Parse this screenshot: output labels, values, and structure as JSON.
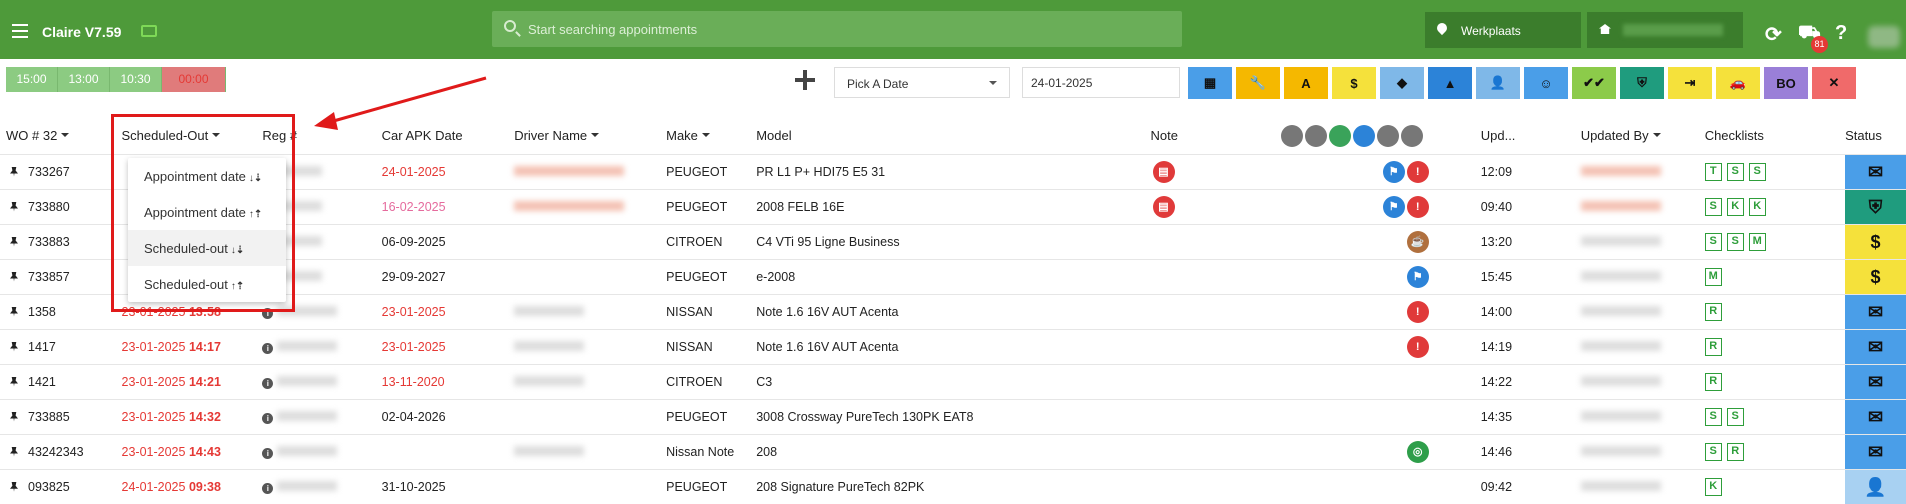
{
  "header": {
    "title": "Claire V7.59",
    "search_placeholder": "Start searching appointments",
    "location": "Werkplaats",
    "notifications": "81",
    "help": "?"
  },
  "slots": [
    "15:00",
    "13:00",
    "10:30",
    "00:00"
  ],
  "toolbar": {
    "date_picker": "Pick A Date",
    "date_value": "24-01-2025",
    "buttons": [
      {
        "name": "calendar-icon",
        "label": "▦",
        "color": "#4a9ee8"
      },
      {
        "name": "wrench-icon",
        "label": "🔧",
        "color": "#f5b800"
      },
      {
        "name": "a-icon",
        "label": "A",
        "color": "#f5b800"
      },
      {
        "name": "dollar-icon",
        "label": "$",
        "color": "#f5e13b"
      },
      {
        "name": "tag-icon",
        "label": "◆",
        "color": "#7fb8e8"
      },
      {
        "name": "warning-icon",
        "label": "▲",
        "color": "#2c83d8"
      },
      {
        "name": "user-check-icon",
        "label": "👤",
        "color": "#7fb8e8"
      },
      {
        "name": "face-icon",
        "label": "☺",
        "color": "#4a9ee8"
      },
      {
        "name": "double-check-icon",
        "label": "✔✔",
        "color": "#8ccb4a"
      },
      {
        "name": "shield-icon",
        "label": "⛨",
        "color": "#1f9c7e"
      },
      {
        "name": "exit-icon",
        "label": "⇥",
        "color": "#f5e13b"
      },
      {
        "name": "car-icon",
        "label": "🚗",
        "color": "#f5e13b"
      },
      {
        "name": "bo-button",
        "label": "BO",
        "color": "#9a7fd8"
      },
      {
        "name": "close-icon",
        "label": "✕",
        "color": "#f06a6a"
      }
    ]
  },
  "columns": {
    "wo": "WO # 32",
    "scheduled": "Scheduled-Out",
    "reg": "Reg #",
    "apk": "Car APK Date",
    "driver": "Driver Name",
    "make": "Make",
    "model": "Model",
    "note": "Note",
    "updated": "Upd...",
    "updated_by": "Updated By",
    "checklists": "Checklists",
    "status": "Status"
  },
  "dropdown": {
    "items": [
      "Appointment date",
      "Appointment date",
      "Scheduled-out",
      "Scheduled-out"
    ]
  },
  "rows": [
    {
      "wo": "733267",
      "sd": "",
      "st": "",
      "apk": "24-01-2025",
      "apkc": "red",
      "make": "PEUGEOT",
      "model": "PR L1 P+ HDI75 E5 31",
      "note": true,
      "icons": [
        "blue",
        "red"
      ],
      "upd": "12:09",
      "cl": [
        "T",
        "S",
        "S"
      ],
      "status": "blue"
    },
    {
      "wo": "733880",
      "sd": "",
      "st": "",
      "apk": "16-02-2025",
      "apkc": "pink",
      "make": "PEUGEOT",
      "model": "2008 FELB 16E",
      "note": true,
      "icons": [
        "blue",
        "red"
      ],
      "upd": "09:40",
      "cl": [
        "S",
        "K",
        "K"
      ],
      "status": "teal"
    },
    {
      "wo": "733883",
      "sd": "",
      "st": "",
      "apk": "06-09-2025",
      "apkc": "",
      "make": "CITROEN",
      "model": "C4 VTi 95 Ligne Business",
      "note": false,
      "icons": [
        "brown"
      ],
      "upd": "13:20",
      "cl": [
        "S",
        "S",
        "M"
      ],
      "status": "yellow"
    },
    {
      "wo": "733857",
      "sd": "",
      "st": "",
      "apk": "29-09-2027",
      "apkc": "",
      "make": "PEUGEOT",
      "model": "e-2008",
      "note": false,
      "icons": [
        "blue"
      ],
      "upd": "15:45",
      "cl": [
        "M"
      ],
      "status": "yellow"
    },
    {
      "wo": "1358",
      "sd": "23-01-2025",
      "st": "13:58",
      "apk": "23-01-2025",
      "apkc": "red",
      "make": "NISSAN",
      "model": "Note 1.6 16V AUT Acenta",
      "note": false,
      "icons": [
        "red"
      ],
      "upd": "14:00",
      "cl": [
        "R"
      ],
      "status": "blue"
    },
    {
      "wo": "1417",
      "sd": "23-01-2025",
      "st": "14:17",
      "apk": "23-01-2025",
      "apkc": "red",
      "make": "NISSAN",
      "model": "Note 1.6 16V AUT Acenta",
      "note": false,
      "icons": [
        "red"
      ],
      "upd": "14:19",
      "cl": [
        "R"
      ],
      "status": "blue"
    },
    {
      "wo": "1421",
      "sd": "23-01-2025",
      "st": "14:21",
      "apk": "13-11-2020",
      "apkc": "red",
      "make": "CITROEN",
      "model": "C3",
      "note": false,
      "icons": [],
      "upd": "14:22",
      "cl": [
        "R"
      ],
      "status": "blue"
    },
    {
      "wo": "733885",
      "sd": "23-01-2025",
      "st": "14:32",
      "apk": "02-04-2026",
      "apkc": "",
      "make": "PEUGEOT",
      "model": "3008 Crossway PureTech 130PK EAT8",
      "note": false,
      "icons": [],
      "upd": "14:35",
      "cl": [
        "S",
        "S"
      ],
      "status": "blue"
    },
    {
      "wo": "43242343",
      "sd": "23-01-2025",
      "st": "14:43",
      "apk": "",
      "apkc": "",
      "make": "Nissan Note",
      "model": "208",
      "note": false,
      "icons": [
        "green"
      ],
      "upd": "14:46",
      "cl": [
        "S",
        "R"
      ],
      "status": "blue"
    },
    {
      "wo": "093825",
      "sd": "24-01-2025",
      "st": "09:38",
      "apk": "31-10-2025",
      "apkc": "",
      "make": "PEUGEOT",
      "model": "208 Signature PureTech 82PK",
      "note": false,
      "icons": [],
      "upd": "09:42",
      "cl": [
        "K"
      ],
      "status": "light"
    }
  ]
}
